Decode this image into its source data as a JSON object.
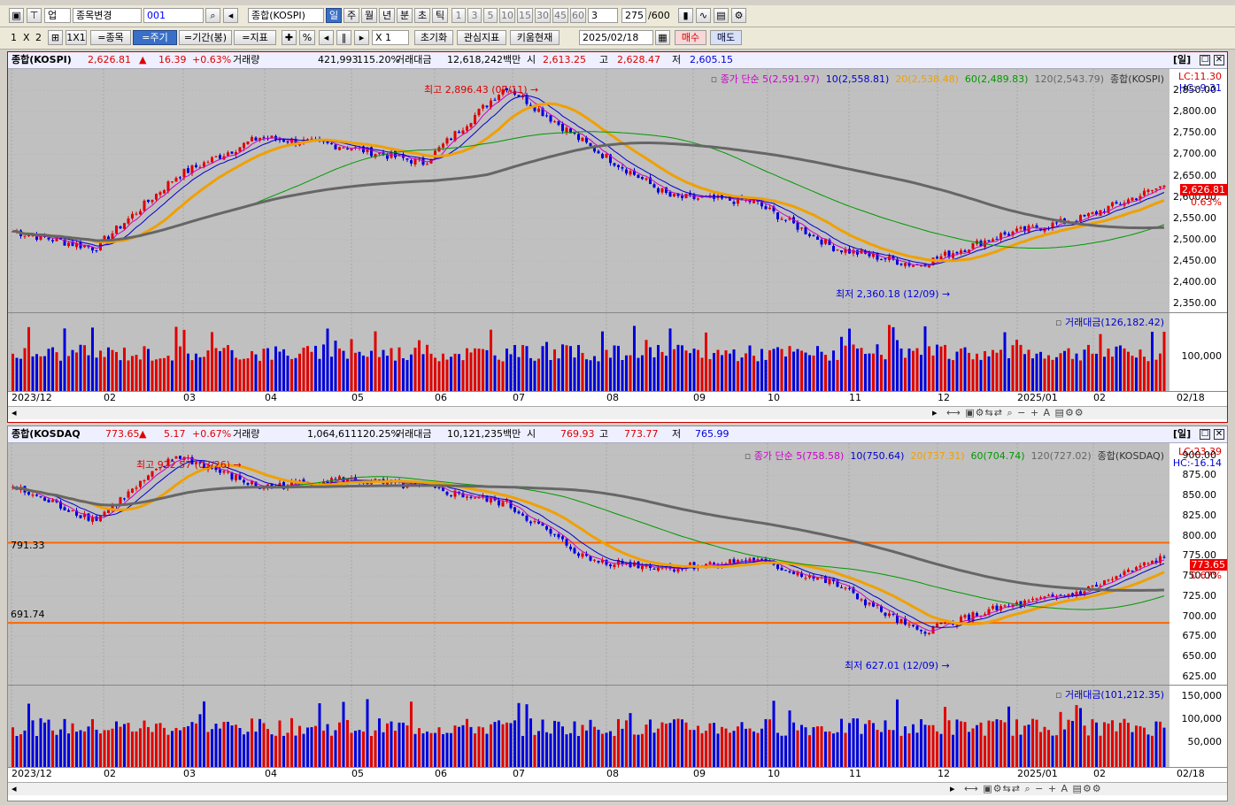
{
  "toolbar1": {
    "market_select": "업",
    "stock_change": "종목변경",
    "code": "001",
    "index_name": "종합(KOSPI)",
    "periods": [
      "일",
      "주",
      "월",
      "년",
      "분",
      "초",
      "틱"
    ],
    "minute_options": [
      "1",
      "3",
      "5",
      "10",
      "15",
      "30",
      "45",
      "60"
    ],
    "count_select": "3",
    "data_count": "275",
    "data_total": "/600"
  },
  "toolbar2": {
    "layout_1": "1",
    "layout_x": "X",
    "layout_2": "2",
    "layout_1x1": "1X1",
    "eq_stock": "=종목",
    "eq_cycle": "=주기",
    "eq_period": "=기간(봉)",
    "eq_indicator": "=지표",
    "percent": "%",
    "multiplier": "X 1",
    "reset": "초기화",
    "interest": "관심지표",
    "kiwoom": "키움현재",
    "date": "2025/02/18",
    "buy": "매수",
    "sell": "매도"
  },
  "panels": [
    {
      "name": "종합(KOSPI)",
      "price": "2,626.81",
      "arrow": "▲",
      "change": "16.39",
      "change_pct": "+0.63%",
      "vol_label": "거래량",
      "volume": "421,993",
      "vol_pct": "115.20%",
      "amt_label": "거래대금",
      "amount": "12,618,242백만",
      "open_label": "시",
      "open": "2,613.25",
      "high_label": "고",
      "high": "2,628.47",
      "low_label": "저",
      "low": "2,605.15",
      "period_tag": "[일]",
      "legend": {
        "ma5": "종가 단순 5(2,591.97)",
        "ma10": "10(2,558.81)",
        "ma20": "20(2,538.48)",
        "ma60": "60(2,489.83)",
        "ma120": "120(2,543.79)",
        "series": "종합(KOSPI)"
      },
      "lc": "LC:11.30",
      "hc": "HC:-9.31",
      "last_price": "2,626.81",
      "last_pct": "0.63%",
      "max_ann": "최고 2,896.43 (07/11)",
      "min_ann": "최저 2,360.18 (12/09)",
      "y_ticks": [
        "2,850.00",
        "2,800.00",
        "2,750.00",
        "2,700.00",
        "2,650.00",
        "2,600.00",
        "2,550.00",
        "2,500.00",
        "2,450.00",
        "2,400.00",
        "2,350.00"
      ],
      "vol_legend": "거래대금(126,182.42)",
      "vol_ticks": [
        "100,000"
      ],
      "hlines": []
    },
    {
      "name": "종합(KOSDAQ",
      "price": "773.65",
      "arrow": "▲",
      "change": "5.17",
      "change_pct": "+0.67%",
      "vol_label": "거래량",
      "volume": "1,064,611",
      "vol_pct": "120.25%",
      "amt_label": "거래대금",
      "amount": "10,121,235백만",
      "open_label": "시",
      "open": "769.93",
      "high_label": "고",
      "high": "773.77",
      "low_label": "저",
      "low": "765.99",
      "period_tag": "[일]",
      "legend": {
        "ma5": "종가 단순 5(758.58)",
        "ma10": "10(750.64)",
        "ma20": "20(737.31)",
        "ma60": "60(704.74)",
        "ma120": "120(727.02)",
        "series": "종합(KOSDAQ)"
      },
      "lc": "LC:23.39",
      "hc": "HC:-16.14",
      "last_price": "773.65",
      "last_pct": "0.67%",
      "max_ann": "최고 922.57 (03/26)",
      "min_ann": "최저 627.01 (12/09)",
      "y_ticks": [
        "900.00",
        "875.00",
        "850.00",
        "825.00",
        "800.00",
        "775.00",
        "750.00",
        "725.00",
        "700.00",
        "675.00",
        "650.00",
        "625.00"
      ],
      "vol_legend": "거래대금(101,212.35)",
      "vol_ticks": [
        "150,000",
        "100,000",
        "50,000"
      ],
      "hlines": [
        "791.33",
        "691.74"
      ]
    }
  ],
  "x_labels": [
    "2023/12",
    "02",
    "03",
    "04",
    "05",
    "06",
    "07",
    "08",
    "09",
    "10",
    "11",
    "12",
    "2025/01",
    "02"
  ],
  "x_last": "02/18",
  "colors": {
    "up": "#e00000",
    "down": "#0000dd",
    "ma5": "#cc00cc",
    "ma10": "#0000cc",
    "ma20": "#f0a000",
    "ma60": "#009900",
    "ma120": "#666666",
    "hline": "#ff6600"
  },
  "chart_data": [
    {
      "type": "candlestick",
      "title": "종합(KOSPI)",
      "ylim": [
        2330,
        2900
      ],
      "x": [
        "2023/12",
        "02",
        "03",
        "04",
        "05",
        "06",
        "07",
        "08",
        "09",
        "10",
        "11",
        "12",
        "2025/01",
        "02",
        "02/18"
      ],
      "close": [
        2520,
        2480,
        2650,
        2740,
        2720,
        2680,
        2860,
        2720,
        2600,
        2590,
        2480,
        2440,
        2510,
        2550,
        2626.81
      ],
      "series": [
        {
          "name": "종가 단순 5",
          "last": 2591.97
        },
        {
          "name": "10",
          "last": 2558.81
        },
        {
          "name": "20",
          "last": 2538.48
        },
        {
          "name": "60",
          "last": 2489.83
        },
        {
          "name": "120",
          "last": 2543.79
        }
      ]
    },
    {
      "type": "candlestick",
      "title": "종합(KOSDAQ)",
      "ylim": [
        615,
        915
      ],
      "x": [
        "2023/12",
        "02",
        "03",
        "04",
        "05",
        "06",
        "07",
        "08",
        "09",
        "10",
        "11",
        "12",
        "2025/01",
        "02",
        "02/18"
      ],
      "close": [
        860,
        820,
        900,
        860,
        870,
        860,
        840,
        770,
        760,
        770,
        740,
        680,
        710,
        730,
        773.65
      ],
      "series": [
        {
          "name": "종가 단순 5",
          "last": 758.58
        },
        {
          "name": "10",
          "last": 750.64
        },
        {
          "name": "20",
          "last": 737.31
        },
        {
          "name": "60",
          "last": 704.74
        },
        {
          "name": "120",
          "last": 727.02
        }
      ]
    }
  ]
}
